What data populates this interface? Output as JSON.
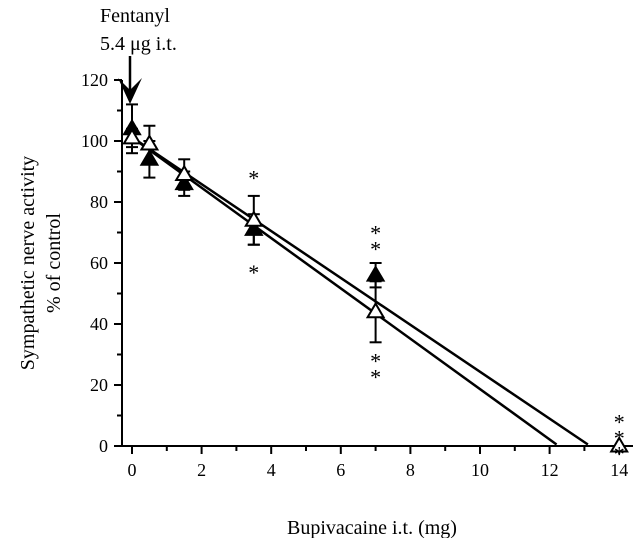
{
  "chart_data": {
    "type": "scatter",
    "xlabel": "Bupivacaine i.t. (mg)",
    "ylabel_line1": "Sympathetic nerve activity",
    "ylabel_line2": "% of control",
    "xlim": [
      -0.5,
      14.5
    ],
    "ylim": [
      0,
      120
    ],
    "xticks": [
      0,
      2,
      4,
      6,
      8,
      10,
      12,
      14
    ],
    "yticks": [
      0,
      20,
      40,
      60,
      80,
      100,
      120
    ],
    "grid": false,
    "annotation": {
      "line1": "Fentanyl",
      "line2": "5.4 μg i.t.",
      "x": 0
    },
    "series": [
      {
        "marker": "filled-triangle",
        "points": [
          {
            "x": 0,
            "y": 104,
            "err": 8
          },
          {
            "x": 0.5,
            "y": 94,
            "err": 6
          },
          {
            "x": 1.5,
            "y": 86,
            "err": 4
          },
          {
            "x": 3.5,
            "y": 71,
            "err": 5
          },
          {
            "x": 7,
            "y": 56,
            "err": 4
          }
        ],
        "fit": {
          "x1": -0.1,
          "y1": 102,
          "x2": 12.2,
          "y2": 0.5
        }
      },
      {
        "marker": "open-triangle",
        "points": [
          {
            "x": 0,
            "y": 101,
            "err": 3
          },
          {
            "x": 0.5,
            "y": 99,
            "err": 6
          },
          {
            "x": 1.5,
            "y": 89,
            "err": 5
          },
          {
            "x": 3.5,
            "y": 74,
            "err": 8
          },
          {
            "x": 7,
            "y": 44,
            "err": 10
          },
          {
            "x": 14,
            "y": 0,
            "err": 0
          }
        ],
        "fit": {
          "x1": -0.1,
          "y1": 102,
          "x2": 13.1,
          "y2": 0.5
        }
      }
    ],
    "significance": [
      {
        "x": 3.5,
        "y": 88,
        "text": "*"
      },
      {
        "x": 3.5,
        "y": 57,
        "text": "*"
      },
      {
        "x": 7,
        "y": 70,
        "text": "**"
      },
      {
        "x": 7,
        "y": 28,
        "text": "**"
      },
      {
        "x": 14,
        "y": 8,
        "text": "***"
      }
    ]
  }
}
